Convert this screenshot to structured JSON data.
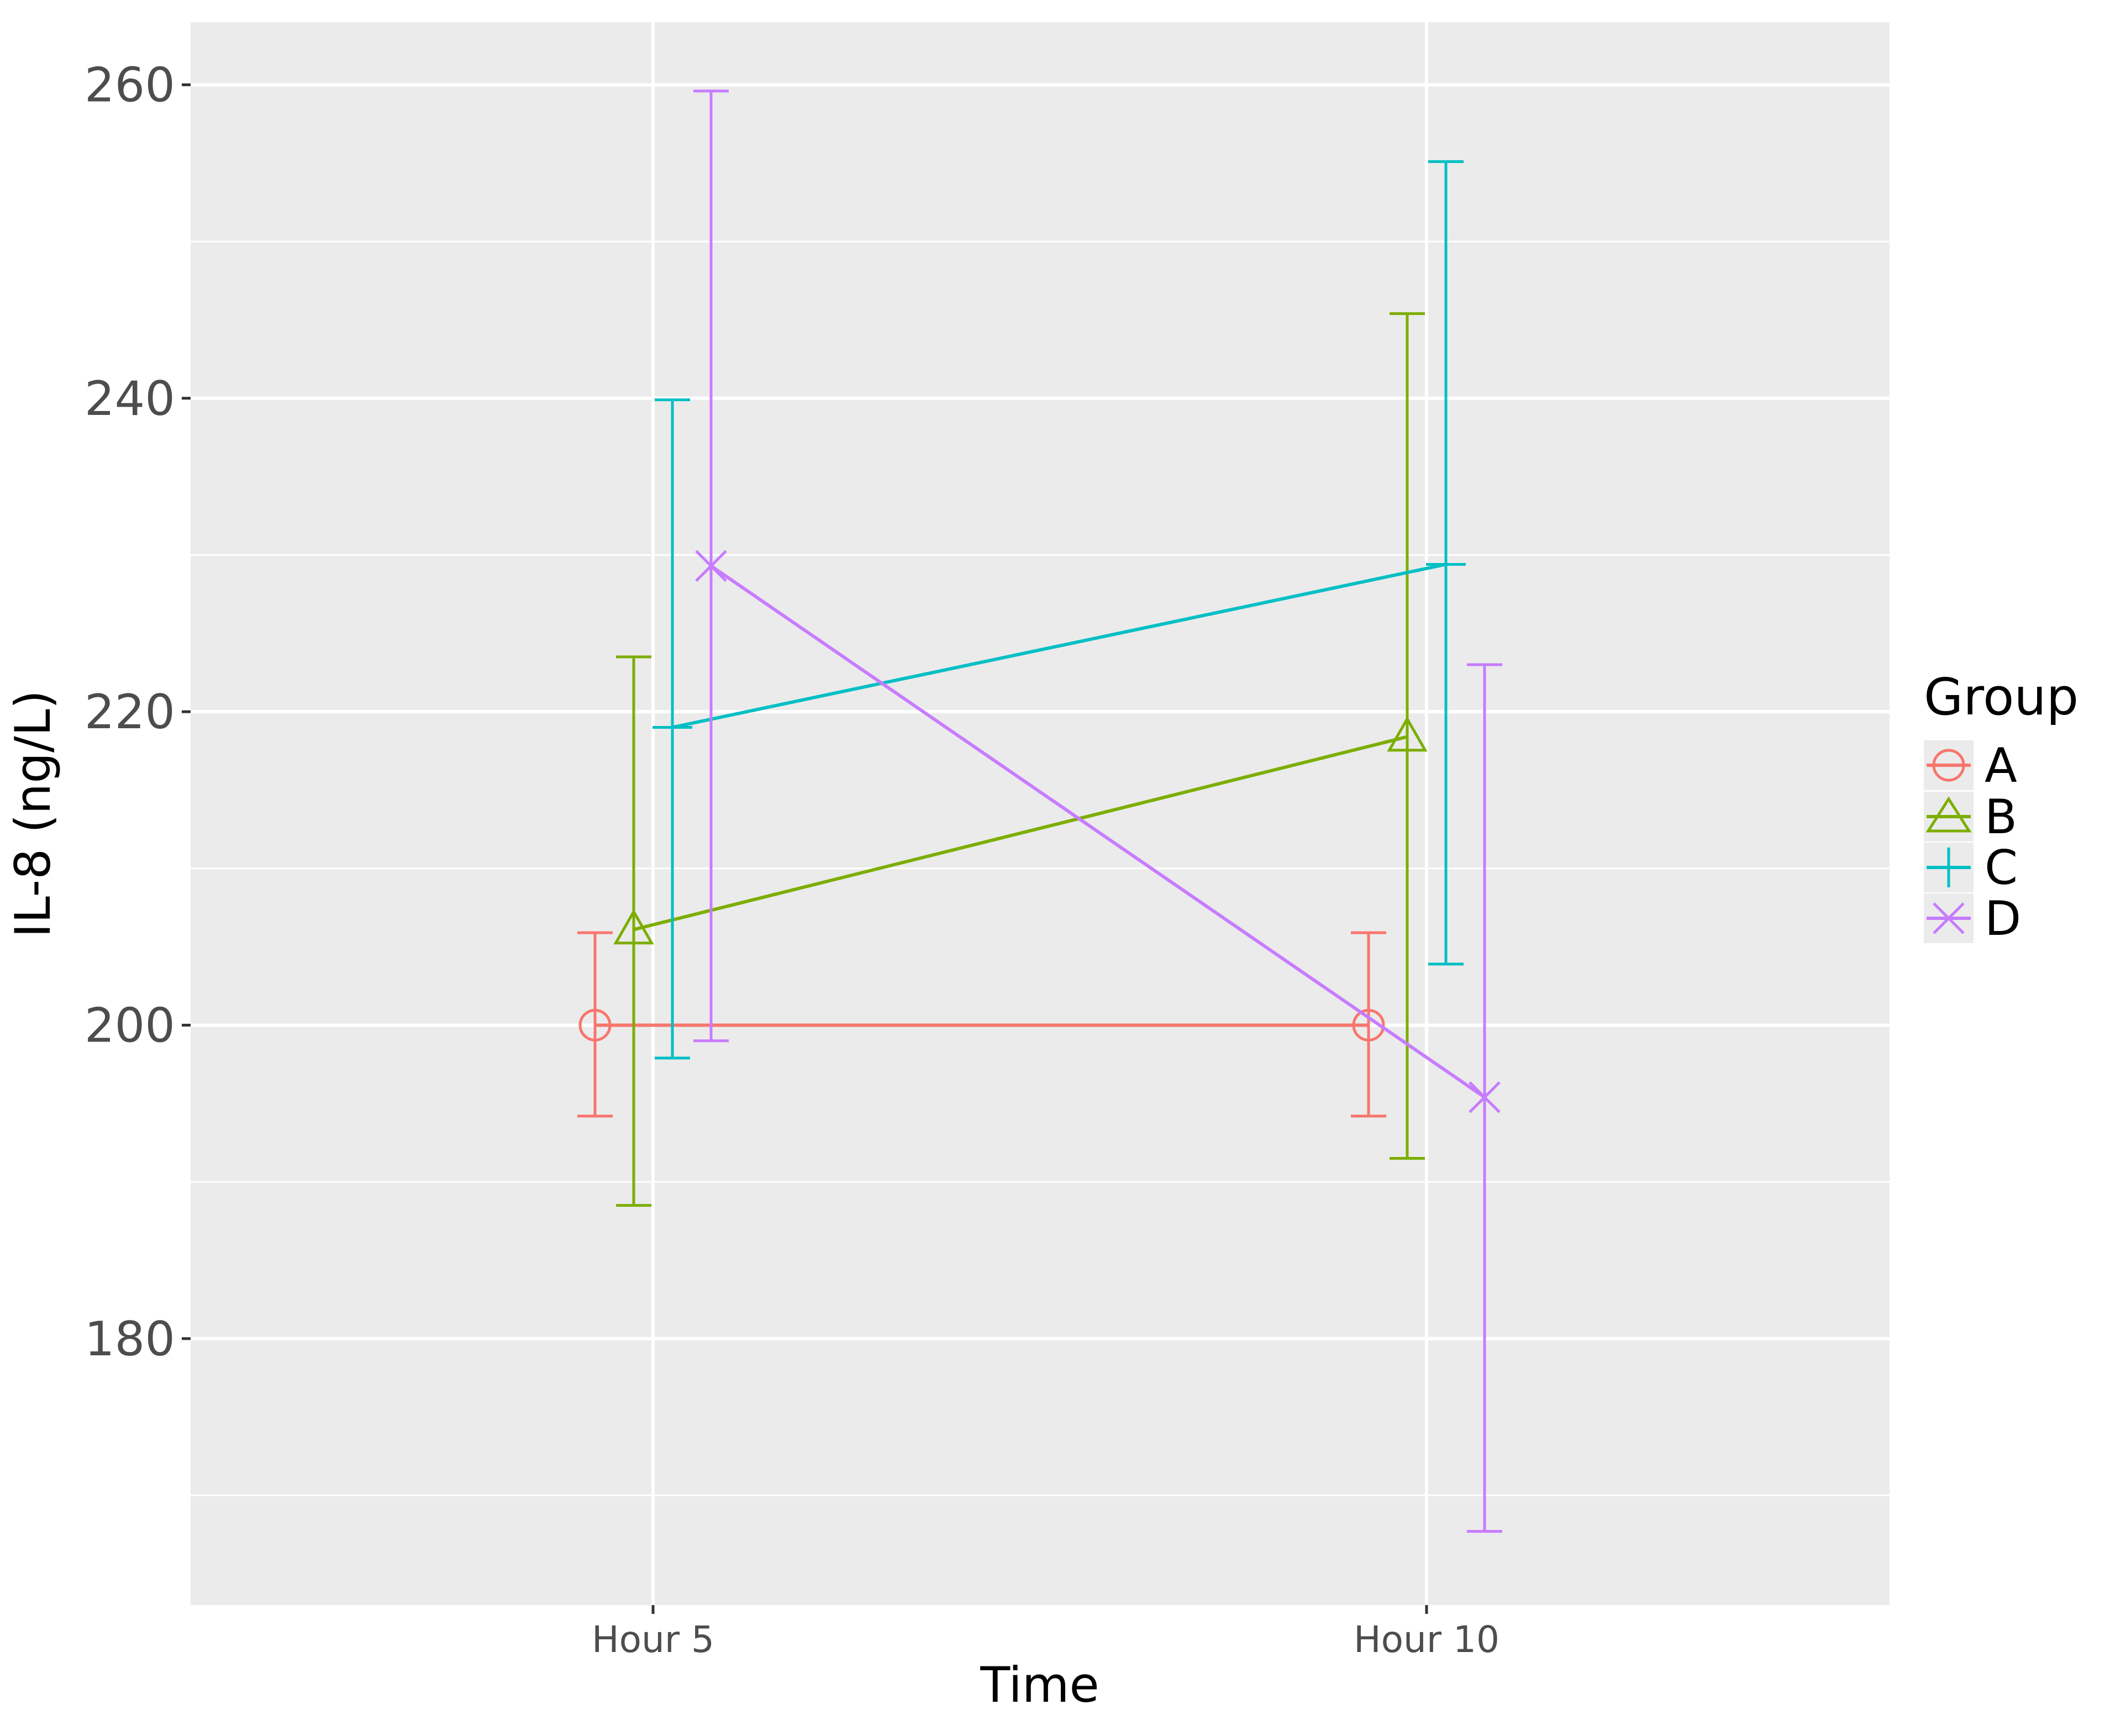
{
  "chart_data": {
    "type": "line",
    "title": "",
    "xlabel": "Time",
    "ylabel": "IL-8 (ng/L)",
    "categories": [
      "Hour 5",
      "Hour 10"
    ],
    "ylim": [
      163,
      264
    ],
    "yticks": [
      180,
      200,
      220,
      240,
      260
    ],
    "grid": true,
    "legend": {
      "title": "Group",
      "placement": "right"
    },
    "series": [
      {
        "name": "A",
        "marker": "circle",
        "color": "#F8766D",
        "values": [
          200.0,
          200.0
        ],
        "error_low": [
          194.2,
          194.2
        ],
        "error_high": [
          205.9,
          205.9
        ]
      },
      {
        "name": "B",
        "marker": "triangle",
        "color": "#7CAE00",
        "values": [
          206.1,
          218.4
        ],
        "error_low": [
          188.5,
          191.5
        ],
        "error_high": [
          223.5,
          245.4
        ]
      },
      {
        "name": "C",
        "marker": "plus",
        "color": "#00BFC4",
        "values": [
          219.0,
          229.4
        ],
        "error_low": [
          197.9,
          203.9
        ],
        "error_high": [
          239.9,
          255.1
        ]
      },
      {
        "name": "D",
        "marker": "x",
        "color": "#C77CFF",
        "values": [
          229.3,
          195.4
        ],
        "error_low": [
          199.0,
          167.7
        ],
        "error_high": [
          259.6,
          223.0
        ]
      }
    ]
  }
}
